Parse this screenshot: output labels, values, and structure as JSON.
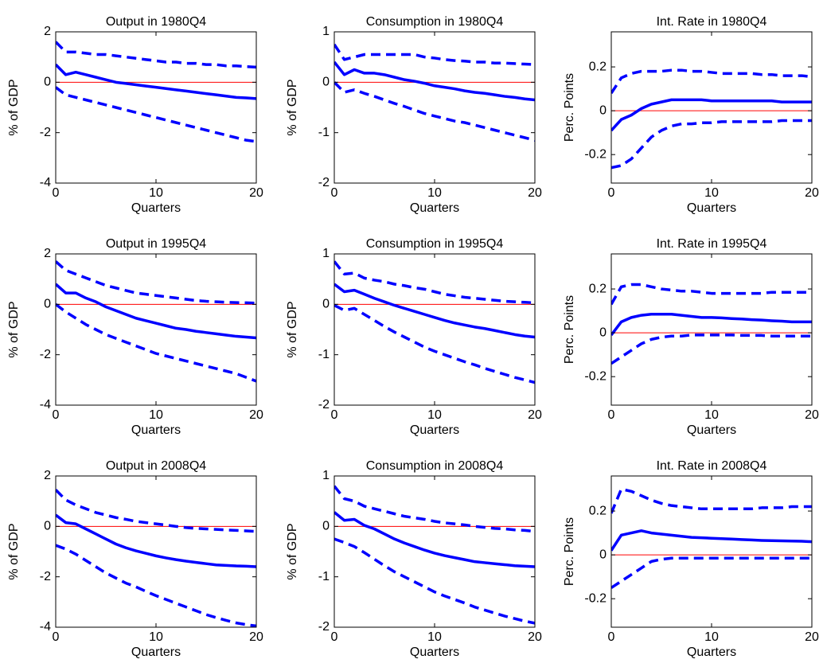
{
  "chart_data": [
    {
      "type": "line",
      "title": "Output in 1980Q4",
      "xlabel": "Quarters",
      "ylabel": "% of GDP",
      "x": [
        0,
        1,
        2,
        3,
        4,
        5,
        6,
        7,
        8,
        9,
        10,
        11,
        12,
        13,
        14,
        15,
        16,
        17,
        18,
        19,
        20
      ],
      "xlim": [
        0,
        20
      ],
      "xticks": [
        0,
        10,
        20
      ],
      "ylim": [
        -4,
        2
      ],
      "yticks": [
        -4,
        -2,
        0,
        2
      ],
      "refline": 0,
      "refline_color": "#ff0000",
      "series": [
        {
          "color": "#0000ff",
          "style": "solid",
          "values": [
            0.7,
            0.3,
            0.4,
            0.3,
            0.2,
            0.1,
            0,
            -0.05,
            -0.1,
            -0.15,
            -0.2,
            -0.25,
            -0.3,
            -0.35,
            -0.4,
            -0.45,
            -0.5,
            -0.55,
            -0.6,
            -0.62,
            -0.65
          ]
        },
        {
          "color": "#0000ff",
          "style": "dashed",
          "values": [
            1.6,
            1.2,
            1.2,
            1.15,
            1.1,
            1.1,
            1.05,
            1,
            0.95,
            0.9,
            0.85,
            0.8,
            0.8,
            0.75,
            0.75,
            0.7,
            0.7,
            0.65,
            0.65,
            0.62,
            0.6
          ]
        },
        {
          "color": "#0000ff",
          "style": "dashed",
          "values": [
            -0.2,
            -0.5,
            -0.6,
            -0.7,
            -0.8,
            -0.9,
            -1.0,
            -1.1,
            -1.2,
            -1.3,
            -1.4,
            -1.5,
            -1.6,
            -1.7,
            -1.8,
            -1.9,
            -2.0,
            -2.1,
            -2.2,
            -2.3,
            -2.35
          ]
        }
      ]
    },
    {
      "type": "line",
      "title": "Consumption in 1980Q4",
      "xlabel": "Quarters",
      "ylabel": "% of GDP",
      "x": [
        0,
        1,
        2,
        3,
        4,
        5,
        6,
        7,
        8,
        9,
        10,
        11,
        12,
        13,
        14,
        15,
        16,
        17,
        18,
        19,
        20
      ],
      "xlim": [
        0,
        20
      ],
      "xticks": [
        0,
        10,
        20
      ],
      "ylim": [
        -2,
        1
      ],
      "yticks": [
        -2,
        -1,
        0,
        1
      ],
      "refline": 0,
      "refline_color": "#ff0000",
      "series": [
        {
          "color": "#0000ff",
          "style": "solid",
          "values": [
            0.4,
            0.15,
            0.25,
            0.18,
            0.18,
            0.15,
            0.1,
            0.05,
            0.02,
            -0.02,
            -0.07,
            -0.1,
            -0.13,
            -0.17,
            -0.2,
            -0.22,
            -0.25,
            -0.28,
            -0.3,
            -0.33,
            -0.35
          ]
        },
        {
          "color": "#0000ff",
          "style": "dashed",
          "values": [
            0.75,
            0.45,
            0.5,
            0.55,
            0.55,
            0.55,
            0.55,
            0.55,
            0.55,
            0.5,
            0.48,
            0.45,
            0.43,
            0.42,
            0.4,
            0.4,
            0.38,
            0.38,
            0.37,
            0.36,
            0.35
          ]
        },
        {
          "color": "#0000ff",
          "style": "dashed",
          "values": [
            0,
            -0.2,
            -0.15,
            -0.22,
            -0.28,
            -0.35,
            -0.42,
            -0.48,
            -0.55,
            -0.62,
            -0.67,
            -0.72,
            -0.77,
            -0.8,
            -0.85,
            -0.9,
            -0.95,
            -1.0,
            -1.05,
            -1.1,
            -1.15
          ]
        }
      ]
    },
    {
      "type": "line",
      "title": "Int. Rate in 1980Q4",
      "xlabel": "Quarters",
      "ylabel": "Perc. Points",
      "x": [
        0,
        1,
        2,
        3,
        4,
        5,
        6,
        7,
        8,
        9,
        10,
        11,
        12,
        13,
        14,
        15,
        16,
        17,
        18,
        19,
        20
      ],
      "xlim": [
        0,
        20
      ],
      "xticks": [
        0,
        10,
        20
      ],
      "ylim": [
        -0.33,
        0.36
      ],
      "yticks": [
        -0.2,
        0,
        0.2
      ],
      "refline": 0,
      "refline_color": "#ff0000",
      "series": [
        {
          "color": "#0000ff",
          "style": "solid",
          "values": [
            -0.09,
            -0.04,
            -0.02,
            0.01,
            0.03,
            0.04,
            0.05,
            0.05,
            0.05,
            0.05,
            0.045,
            0.045,
            0.045,
            0.045,
            0.045,
            0.045,
            0.045,
            0.04,
            0.04,
            0.04,
            0.04
          ]
        },
        {
          "color": "#0000ff",
          "style": "dashed",
          "values": [
            0.08,
            0.15,
            0.17,
            0.18,
            0.18,
            0.18,
            0.185,
            0.185,
            0.18,
            0.18,
            0.175,
            0.17,
            0.17,
            0.17,
            0.17,
            0.165,
            0.165,
            0.16,
            0.16,
            0.16,
            0.155
          ]
        },
        {
          "color": "#0000ff",
          "style": "dashed",
          "values": [
            -0.26,
            -0.25,
            -0.22,
            -0.17,
            -0.12,
            -0.09,
            -0.07,
            -0.06,
            -0.06,
            -0.055,
            -0.055,
            -0.05,
            -0.05,
            -0.05,
            -0.05,
            -0.05,
            -0.05,
            -0.045,
            -0.045,
            -0.045,
            -0.045
          ]
        }
      ]
    },
    {
      "type": "line",
      "title": "Output in 1995Q4",
      "xlabel": "Quarters",
      "ylabel": "% of GDP",
      "x": [
        0,
        1,
        2,
        3,
        4,
        5,
        6,
        7,
        8,
        9,
        10,
        11,
        12,
        13,
        14,
        15,
        16,
        17,
        18,
        19,
        20
      ],
      "xlim": [
        0,
        20
      ],
      "xticks": [
        0,
        10,
        20
      ],
      "ylim": [
        -4,
        2
      ],
      "yticks": [
        -4,
        -2,
        0,
        2
      ],
      "refline": 0,
      "refline_color": "#ff0000",
      "series": [
        {
          "color": "#0000ff",
          "style": "solid",
          "values": [
            0.8,
            0.45,
            0.45,
            0.25,
            0.1,
            -0.1,
            -0.25,
            -0.4,
            -0.55,
            -0.65,
            -0.75,
            -0.85,
            -0.95,
            -1.0,
            -1.07,
            -1.12,
            -1.17,
            -1.22,
            -1.27,
            -1.3,
            -1.33
          ]
        },
        {
          "color": "#0000ff",
          "style": "dashed",
          "values": [
            1.7,
            1.35,
            1.2,
            1.05,
            0.9,
            0.75,
            0.65,
            0.55,
            0.45,
            0.4,
            0.35,
            0.3,
            0.25,
            0.2,
            0.15,
            0.12,
            0.1,
            0.08,
            0.07,
            0.06,
            0.05
          ]
        },
        {
          "color": "#0000ff",
          "style": "dashed",
          "values": [
            0,
            -0.3,
            -0.55,
            -0.8,
            -1.0,
            -1.2,
            -1.35,
            -1.5,
            -1.65,
            -1.8,
            -1.95,
            -2.05,
            -2.15,
            -2.25,
            -2.35,
            -2.45,
            -2.55,
            -2.65,
            -2.75,
            -2.9,
            -3.05
          ]
        }
      ]
    },
    {
      "type": "line",
      "title": "Consumption in 1995Q4",
      "xlabel": "Quarters",
      "ylabel": "% of GDP",
      "x": [
        0,
        1,
        2,
        3,
        4,
        5,
        6,
        7,
        8,
        9,
        10,
        11,
        12,
        13,
        14,
        15,
        16,
        17,
        18,
        19,
        20
      ],
      "xlim": [
        0,
        20
      ],
      "xticks": [
        0,
        10,
        20
      ],
      "ylim": [
        -2,
        1
      ],
      "yticks": [
        -2,
        -1,
        0,
        1
      ],
      "refline": 0,
      "refline_color": "#ff0000",
      "series": [
        {
          "color": "#0000ff",
          "style": "solid",
          "values": [
            0.4,
            0.25,
            0.28,
            0.2,
            0.12,
            0.05,
            -0.02,
            -0.08,
            -0.14,
            -0.2,
            -0.26,
            -0.32,
            -0.37,
            -0.41,
            -0.45,
            -0.48,
            -0.52,
            -0.56,
            -0.6,
            -0.63,
            -0.65
          ]
        },
        {
          "color": "#0000ff",
          "style": "dashed",
          "values": [
            0.85,
            0.6,
            0.62,
            0.52,
            0.48,
            0.45,
            0.4,
            0.37,
            0.33,
            0.3,
            0.25,
            0.2,
            0.17,
            0.14,
            0.12,
            0.1,
            0.08,
            0.06,
            0.05,
            0.04,
            0.03
          ]
        },
        {
          "color": "#0000ff",
          "style": "dashed",
          "values": [
            -0.02,
            -0.12,
            -0.08,
            -0.2,
            -0.32,
            -0.44,
            -0.55,
            -0.65,
            -0.75,
            -0.85,
            -0.93,
            -1.0,
            -1.07,
            -1.14,
            -1.2,
            -1.27,
            -1.33,
            -1.39,
            -1.45,
            -1.5,
            -1.55
          ]
        }
      ]
    },
    {
      "type": "line",
      "title": "Int. Rate in 1995Q4",
      "xlabel": "Quarters",
      "ylabel": "Perc. Points",
      "x": [
        0,
        1,
        2,
        3,
        4,
        5,
        6,
        7,
        8,
        9,
        10,
        11,
        12,
        13,
        14,
        15,
        16,
        17,
        18,
        19,
        20
      ],
      "xlim": [
        0,
        20
      ],
      "xticks": [
        0,
        10,
        20
      ],
      "ylim": [
        -0.33,
        0.36
      ],
      "yticks": [
        -0.2,
        0,
        0.2
      ],
      "refline": 0,
      "refline_color": "#ff0000",
      "series": [
        {
          "color": "#0000ff",
          "style": "solid",
          "values": [
            -0.01,
            0.05,
            0.07,
            0.08,
            0.085,
            0.085,
            0.085,
            0.08,
            0.075,
            0.07,
            0.07,
            0.068,
            0.065,
            0.063,
            0.06,
            0.058,
            0.055,
            0.053,
            0.05,
            0.05,
            0.05
          ]
        },
        {
          "color": "#0000ff",
          "style": "dashed",
          "values": [
            0.13,
            0.21,
            0.22,
            0.22,
            0.21,
            0.2,
            0.195,
            0.19,
            0.19,
            0.185,
            0.18,
            0.18,
            0.18,
            0.18,
            0.18,
            0.18,
            0.185,
            0.185,
            0.185,
            0.185,
            0.185
          ]
        },
        {
          "color": "#0000ff",
          "style": "dashed",
          "values": [
            -0.14,
            -0.11,
            -0.08,
            -0.05,
            -0.03,
            -0.02,
            -0.015,
            -0.015,
            -0.01,
            -0.01,
            -0.01,
            -0.01,
            -0.01,
            -0.012,
            -0.012,
            -0.012,
            -0.015,
            -0.015,
            -0.015,
            -0.015,
            -0.015
          ]
        }
      ]
    },
    {
      "type": "line",
      "title": "Output in 2008Q4",
      "xlabel": "Quarters",
      "ylabel": "% of GDP",
      "x": [
        0,
        1,
        2,
        3,
        4,
        5,
        6,
        7,
        8,
        9,
        10,
        11,
        12,
        13,
        14,
        15,
        16,
        17,
        18,
        19,
        20
      ],
      "xlim": [
        0,
        20
      ],
      "xticks": [
        0,
        10,
        20
      ],
      "ylim": [
        -4,
        2
      ],
      "yticks": [
        -4,
        -2,
        0,
        2
      ],
      "refline": 0,
      "refline_color": "#ff0000",
      "series": [
        {
          "color": "#0000ff",
          "style": "solid",
          "values": [
            0.45,
            0.15,
            0.1,
            -0.1,
            -0.3,
            -0.5,
            -0.7,
            -0.85,
            -0.97,
            -1.07,
            -1.17,
            -1.25,
            -1.32,
            -1.38,
            -1.43,
            -1.48,
            -1.53,
            -1.55,
            -1.57,
            -1.58,
            -1.6
          ]
        },
        {
          "color": "#0000ff",
          "style": "dashed",
          "values": [
            1.45,
            1.05,
            0.85,
            0.7,
            0.55,
            0.45,
            0.35,
            0.28,
            0.2,
            0.15,
            0.1,
            0.05,
            0,
            -0.05,
            -0.08,
            -0.1,
            -0.12,
            -0.14,
            -0.16,
            -0.18,
            -0.2
          ]
        },
        {
          "color": "#0000ff",
          "style": "dashed",
          "values": [
            -0.75,
            -0.9,
            -1.1,
            -1.35,
            -1.6,
            -1.85,
            -2.05,
            -2.25,
            -2.4,
            -2.58,
            -2.75,
            -2.9,
            -3.05,
            -3.2,
            -3.35,
            -3.5,
            -3.62,
            -3.73,
            -3.83,
            -3.9,
            -3.95
          ]
        }
      ]
    },
    {
      "type": "line",
      "title": "Consumption in 2008Q4",
      "xlabel": "Quarters",
      "ylabel": "% of GDP",
      "x": [
        0,
        1,
        2,
        3,
        4,
        5,
        6,
        7,
        8,
        9,
        10,
        11,
        12,
        13,
        14,
        15,
        16,
        17,
        18,
        19,
        20
      ],
      "xlim": [
        0,
        20
      ],
      "xticks": [
        0,
        10,
        20
      ],
      "ylim": [
        -2,
        1
      ],
      "yticks": [
        -2,
        -1,
        0,
        1
      ],
      "refline": 0,
      "refline_color": "#ff0000",
      "series": [
        {
          "color": "#0000ff",
          "style": "solid",
          "values": [
            0.28,
            0.12,
            0.14,
            0.02,
            -0.05,
            -0.15,
            -0.25,
            -0.33,
            -0.4,
            -0.47,
            -0.53,
            -0.58,
            -0.62,
            -0.66,
            -0.7,
            -0.72,
            -0.74,
            -0.76,
            -0.78,
            -0.79,
            -0.8
          ]
        },
        {
          "color": "#0000ff",
          "style": "dashed",
          "values": [
            0.8,
            0.55,
            0.5,
            0.4,
            0.35,
            0.3,
            0.25,
            0.2,
            0.17,
            0.14,
            0.1,
            0.07,
            0.05,
            0.03,
            0,
            -0.02,
            -0.04,
            -0.05,
            -0.07,
            -0.08,
            -0.1
          ]
        },
        {
          "color": "#0000ff",
          "style": "dashed",
          "values": [
            -0.25,
            -0.32,
            -0.4,
            -0.52,
            -0.65,
            -0.78,
            -0.9,
            -1.0,
            -1.1,
            -1.2,
            -1.3,
            -1.38,
            -1.45,
            -1.52,
            -1.6,
            -1.66,
            -1.72,
            -1.78,
            -1.83,
            -1.88,
            -1.92
          ]
        }
      ]
    },
    {
      "type": "line",
      "title": "Int. Rate in 2008Q4",
      "xlabel": "Quarters",
      "ylabel": "Perc. Points",
      "x": [
        0,
        1,
        2,
        3,
        4,
        5,
        6,
        7,
        8,
        9,
        10,
        11,
        12,
        13,
        14,
        15,
        16,
        17,
        18,
        19,
        20
      ],
      "xlim": [
        0,
        20
      ],
      "xticks": [
        0,
        10,
        20
      ],
      "ylim": [
        -0.33,
        0.36
      ],
      "yticks": [
        -0.2,
        0,
        0.2
      ],
      "refline": 0,
      "refline_color": "#ff0000",
      "series": [
        {
          "color": "#0000ff",
          "style": "solid",
          "values": [
            0.02,
            0.09,
            0.1,
            0.11,
            0.1,
            0.095,
            0.09,
            0.085,
            0.08,
            0.078,
            0.076,
            0.074,
            0.072,
            0.07,
            0.068,
            0.066,
            0.065,
            0.064,
            0.063,
            0.062,
            0.06
          ]
        },
        {
          "color": "#0000ff",
          "style": "dashed",
          "values": [
            0.19,
            0.3,
            0.29,
            0.27,
            0.25,
            0.235,
            0.225,
            0.22,
            0.215,
            0.21,
            0.21,
            0.21,
            0.21,
            0.21,
            0.21,
            0.215,
            0.215,
            0.215,
            0.22,
            0.22,
            0.22
          ]
        },
        {
          "color": "#0000ff",
          "style": "dashed",
          "values": [
            -0.15,
            -0.12,
            -0.09,
            -0.06,
            -0.03,
            -0.02,
            -0.015,
            -0.015,
            -0.015,
            -0.015,
            -0.015,
            -0.015,
            -0.015,
            -0.015,
            -0.015,
            -0.015,
            -0.015,
            -0.015,
            -0.015,
            -0.015,
            -0.015
          ]
        }
      ]
    }
  ]
}
